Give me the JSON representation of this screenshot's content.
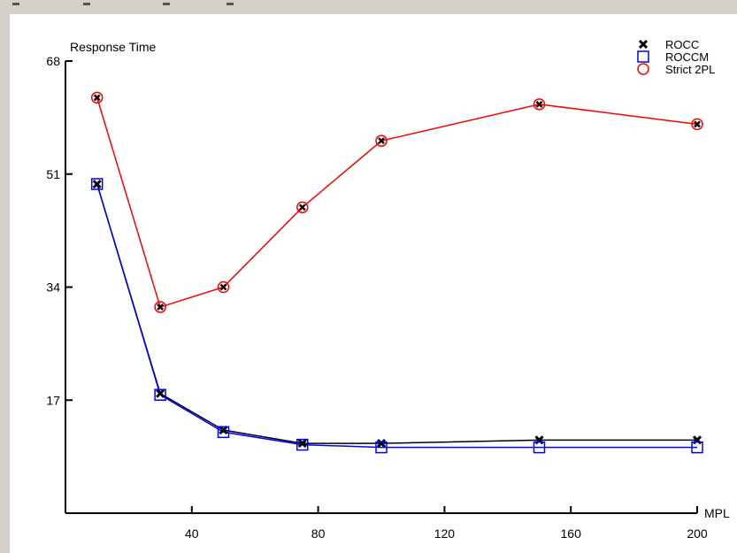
{
  "chart_data": {
    "type": "line",
    "ylabel": "Response Time",
    "xlabel": "MPL",
    "xlim": [
      0,
      200
    ],
    "ylim": [
      0,
      68
    ],
    "x_ticks": [
      40,
      80,
      120,
      160,
      200
    ],
    "y_ticks": [
      17,
      34,
      51,
      68
    ],
    "x": [
      10,
      30,
      50,
      75,
      100,
      150,
      200
    ],
    "series": [
      {
        "name": "ROCC",
        "marker": "x",
        "color": "#000000",
        "values": [
          49.5,
          18,
          12.5,
          10.5,
          10.5,
          11,
          11
        ]
      },
      {
        "name": "ROCCM",
        "marker": "square",
        "color": "#0000ff",
        "values": [
          49.5,
          17.8,
          12.2,
          10.3,
          9.9,
          9.9,
          9.9
        ]
      },
      {
        "name": "Strict 2PL",
        "marker": "circle",
        "color": "#ff0000",
        "values": [
          62.5,
          31,
          34,
          46,
          56,
          61.5,
          58.5
        ]
      }
    ],
    "legend_position": "top-right",
    "grid": false
  }
}
